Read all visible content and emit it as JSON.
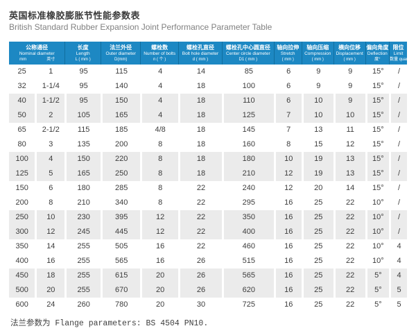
{
  "page": {
    "title_zh": "英国标准橡胶膨胀节性能参数表",
    "title_en": "British Standard Rubber Expansion Joint Performance Parameter Table",
    "footer_note": "法兰参数为 Flange parameters: BS 4504 PN10."
  },
  "colors": {
    "header_bg": "#1d88c3",
    "header_divider": "#106e9f",
    "header_text": "#ffffff",
    "alt_row_bg": "#ebebeb",
    "title_text": "#3a3a3a",
    "subtitle_text": "#808080",
    "cell_text": "#3c3c3c"
  },
  "table": {
    "columns": [
      {
        "zh": "公称通径",
        "en": "Nominal diameter",
        "sub": [
          "mm",
          "英寸"
        ]
      },
      {
        "zh": "长度",
        "en": "Length",
        "unit": "L ( mm )"
      },
      {
        "zh": "法兰外径",
        "en": "Outer diameter",
        "unit": "D(mm)"
      },
      {
        "zh": "螺栓数",
        "en": "Number of bolts",
        "unit": "n ( 个 )"
      },
      {
        "zh": "螺栓孔直径",
        "en": "Bolt hole diameter",
        "unit": "d ( mm )"
      },
      {
        "zh": "螺栓孔中心圆直径",
        "en": "Center circle diameter",
        "unit": "D1 ( mm )"
      },
      {
        "zh": "轴向拉伸",
        "en": "Stretch",
        "unit": "( mm )"
      },
      {
        "zh": "轴向压缩",
        "en": "Compression",
        "unit": "( mm )"
      },
      {
        "zh": "横向位移",
        "en": "Displacement",
        "unit": "( mm )"
      },
      {
        "zh": "偏向角度",
        "en": "Deflection",
        "unit": "度°"
      },
      {
        "zh": "限位",
        "en": "Limit",
        "unit": "数量 quantity"
      }
    ],
    "rows": [
      [
        "25",
        "1",
        "95",
        "115",
        "4",
        "14",
        "85",
        "6",
        "9",
        "9",
        "15°",
        "/"
      ],
      [
        "32",
        "1-1/4",
        "95",
        "140",
        "4",
        "18",
        "100",
        "6",
        "9",
        "9",
        "15°",
        "/"
      ],
      [
        "40",
        "1-1/2",
        "95",
        "150",
        "4",
        "18",
        "110",
        "6",
        "10",
        "9",
        "15°",
        "/"
      ],
      [
        "50",
        "2",
        "105",
        "165",
        "4",
        "18",
        "125",
        "7",
        "10",
        "10",
        "15°",
        "/"
      ],
      [
        "65",
        "2-1/2",
        "115",
        "185",
        "4/8",
        "18",
        "145",
        "7",
        "13",
        "11",
        "15°",
        "/"
      ],
      [
        "80",
        "3",
        "135",
        "200",
        "8",
        "18",
        "160",
        "8",
        "15",
        "12",
        "15°",
        "/"
      ],
      [
        "100",
        "4",
        "150",
        "220",
        "8",
        "18",
        "180",
        "10",
        "19",
        "13",
        "15°",
        "/"
      ],
      [
        "125",
        "5",
        "165",
        "250",
        "8",
        "18",
        "210",
        "12",
        "19",
        "13",
        "15°",
        "/"
      ],
      [
        "150",
        "6",
        "180",
        "285",
        "8",
        "22",
        "240",
        "12",
        "20",
        "14",
        "15°",
        "/"
      ],
      [
        "200",
        "8",
        "210",
        "340",
        "8",
        "22",
        "295",
        "16",
        "25",
        "22",
        "10°",
        "/"
      ],
      [
        "250",
        "10",
        "230",
        "395",
        "12",
        "22",
        "350",
        "16",
        "25",
        "22",
        "10°",
        "/"
      ],
      [
        "300",
        "12",
        "245",
        "445",
        "12",
        "22",
        "400",
        "16",
        "25",
        "22",
        "10°",
        "/"
      ],
      [
        "350",
        "14",
        "255",
        "505",
        "16",
        "22",
        "460",
        "16",
        "25",
        "22",
        "10°",
        "4"
      ],
      [
        "400",
        "16",
        "255",
        "565",
        "16",
        "26",
        "515",
        "16",
        "25",
        "22",
        "10°",
        "4"
      ],
      [
        "450",
        "18",
        "255",
        "615",
        "20",
        "26",
        "565",
        "16",
        "25",
        "22",
        "5°",
        "4"
      ],
      [
        "500",
        "20",
        "255",
        "670",
        "20",
        "26",
        "620",
        "16",
        "25",
        "22",
        "5°",
        "5"
      ],
      [
        "600",
        "24",
        "260",
        "780",
        "20",
        "30",
        "725",
        "16",
        "25",
        "22",
        "5°",
        "5"
      ]
    ]
  }
}
